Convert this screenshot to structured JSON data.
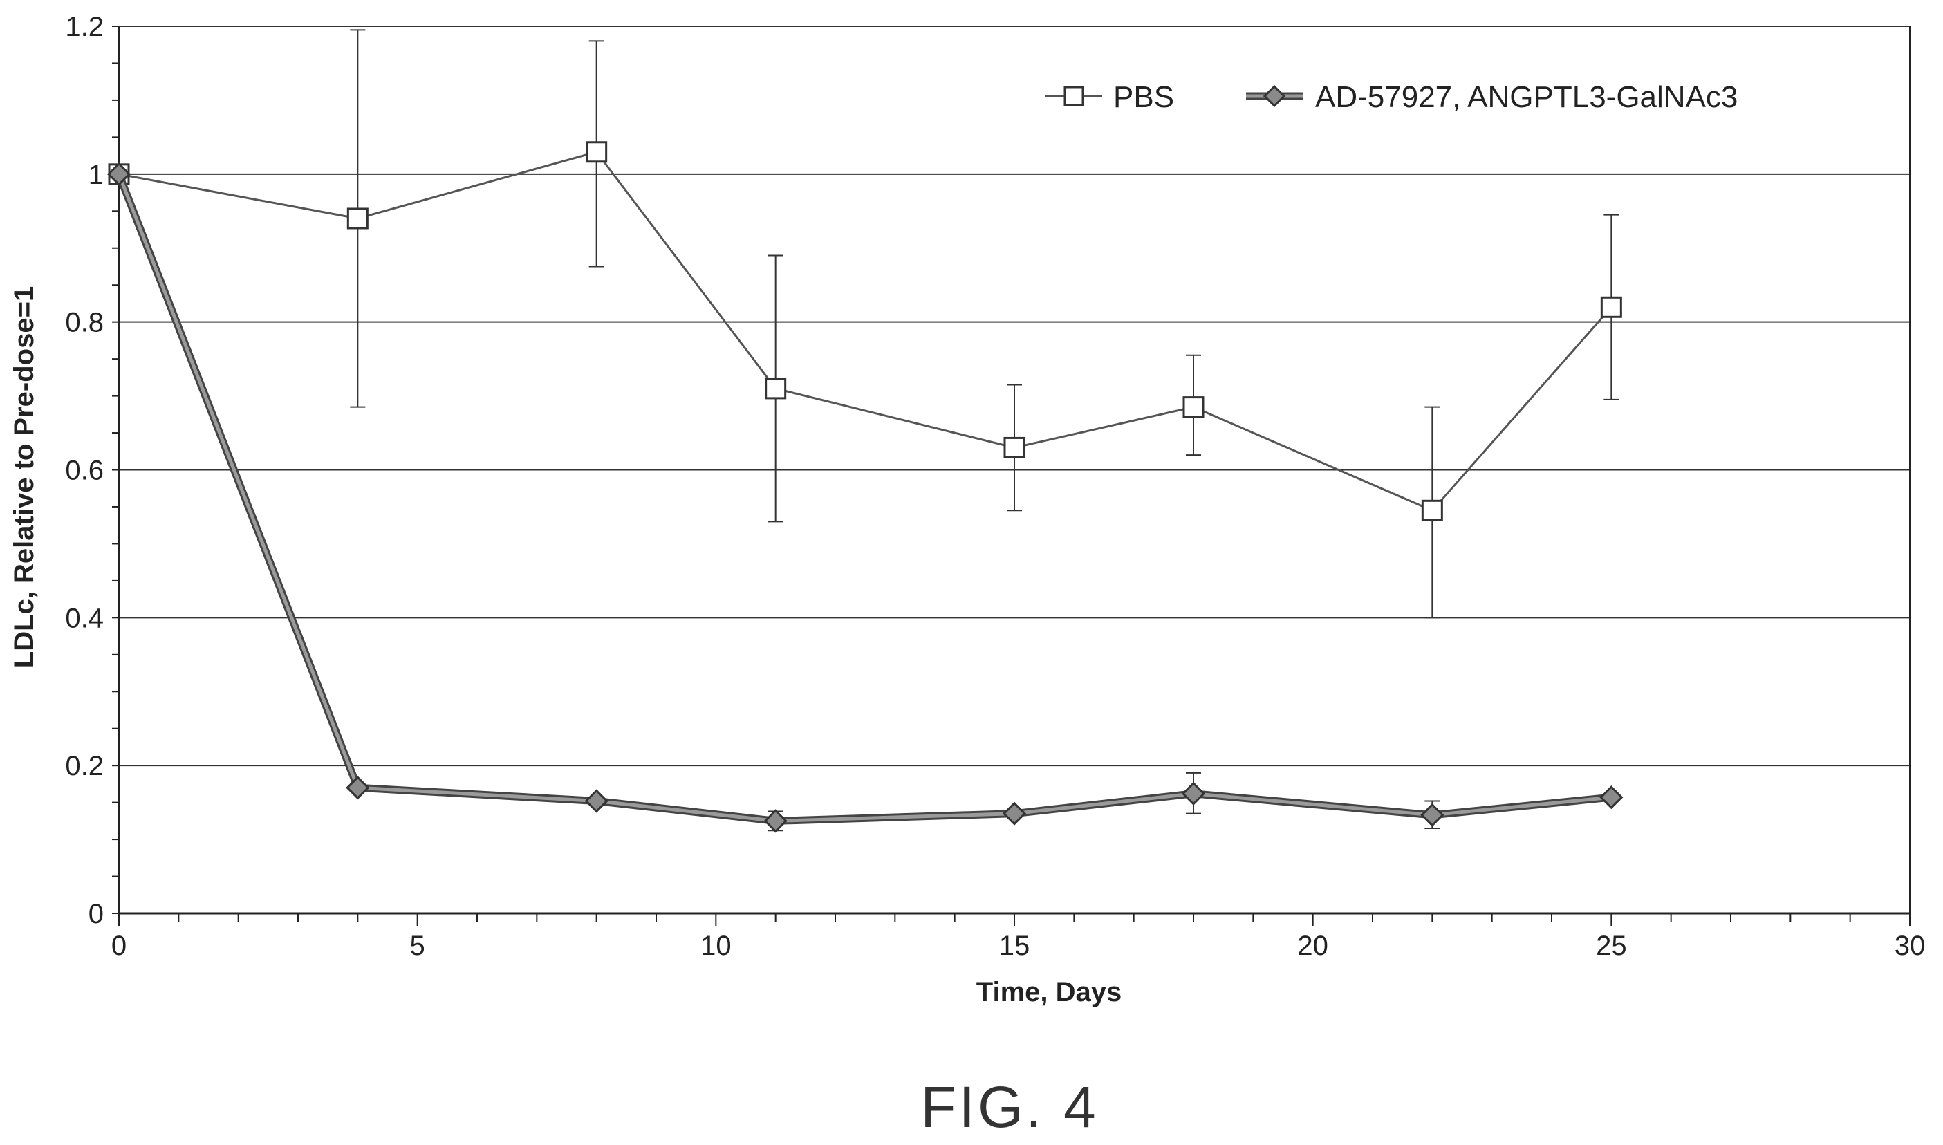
{
  "figure_label": "FIG. 4",
  "chart_data": {
    "type": "line",
    "xlabel": "Time, Days",
    "ylabel": "LDLc, Relative to Pre-dose=1",
    "xlim": [
      0,
      30
    ],
    "ylim": [
      0,
      1.2
    ],
    "xticks": [
      "0",
      "5",
      "10",
      "15",
      "20",
      "25",
      "30"
    ],
    "yticks": [
      "0",
      "0.2",
      "0.4",
      "0.6",
      "0.8",
      "1",
      "1.2"
    ],
    "grid": "horizontal",
    "legend_position": "top-right",
    "series": [
      {
        "name": "PBS",
        "marker": "open-square",
        "color": "#555555",
        "x": [
          0,
          4,
          8,
          11,
          15,
          18,
          22,
          25
        ],
        "y": [
          1.0,
          0.94,
          1.03,
          0.71,
          0.63,
          0.685,
          0.545,
          0.82
        ],
        "err_low": [
          1.0,
          0.685,
          0.875,
          0.53,
          0.545,
          0.62,
          0.4,
          0.695
        ],
        "err_high": [
          1.0,
          1.195,
          1.18,
          0.89,
          0.715,
          0.755,
          0.685,
          0.945
        ]
      },
      {
        "name": "AD-57927, ANGPTL3-GalNAc3",
        "marker": "filled-diamond",
        "color": "#555555",
        "x": [
          0,
          4,
          8,
          11,
          15,
          18,
          22,
          25
        ],
        "y": [
          1.0,
          0.17,
          0.152,
          0.125,
          0.135,
          0.162,
          0.133,
          0.157
        ],
        "err_low": [
          1.0,
          0.17,
          0.152,
          0.112,
          0.135,
          0.135,
          0.115,
          0.157
        ],
        "err_high": [
          1.0,
          0.17,
          0.152,
          0.138,
          0.135,
          0.19,
          0.152,
          0.157
        ]
      }
    ]
  }
}
